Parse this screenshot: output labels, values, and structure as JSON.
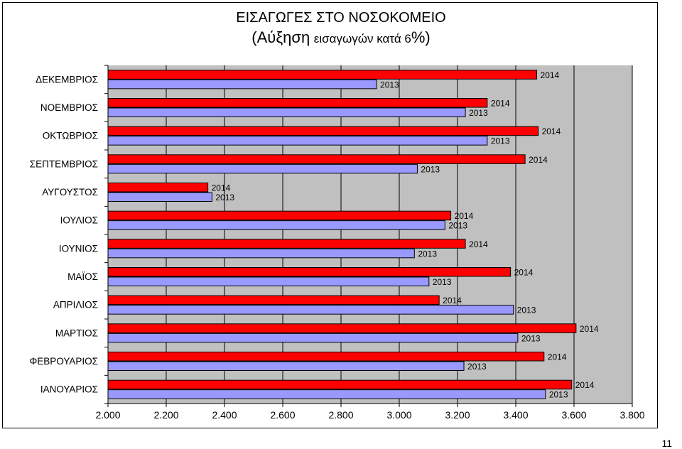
{
  "chart_data": {
    "type": "bar",
    "orientation": "horizontal",
    "title": "ΕΙΣΑΓΩΓΕΣ ΣΤΟ ΝΟΣΟΚΟΜΕΙΟ",
    "subtitle_parts": [
      "(",
      "Αύξηση",
      "εισαγωγών κατά 6",
      "%",
      ")"
    ],
    "categories": [
      "ΔΕΚΕΜΒΡΙΟΣ",
      "ΝΟΕΜΒΡΙΟΣ",
      "ΟΚΤΩΒΡΙΟΣ",
      "ΣΕΠΤΕΜΒΡΙΟΣ",
      "ΑΥΓΟΥΣΤΟΣ",
      "ΙΟΥΛΙΟΣ",
      "ΙΟΥΝΙΟΣ",
      "ΜΑΪΟΣ",
      "ΑΠΡΙΛΙΟΣ",
      "ΜΑΡΤΙΟΣ",
      "ΦΕΒΡΟΥΑΡΙΟΣ",
      "ΙΑΝΟΥΑΡΙΟΣ"
    ],
    "series": [
      {
        "name": "2014",
        "color": "#ff0000",
        "values": [
          3472,
          3302,
          3477,
          3432,
          2343,
          3177,
          3227,
          3382,
          3137,
          3607,
          3497,
          3592
        ]
      },
      {
        "name": "2013",
        "color": "#9999ff",
        "values": [
          2922,
          3227,
          3302,
          3062,
          2357,
          3157,
          3052,
          3102,
          3392,
          3407,
          3222,
          3502
        ]
      }
    ],
    "xlim": [
      2000,
      3800
    ],
    "xticks": [
      2000,
      2200,
      2400,
      2600,
      2800,
      3000,
      3200,
      3400,
      3600,
      3800
    ],
    "xtick_labels": [
      "2.000",
      "2.200",
      "2.400",
      "2.600",
      "2.800",
      "3.000",
      "3.200",
      "3.400",
      "3.600",
      "3.800"
    ],
    "grid": "vertical",
    "plot_background": "#c0c0c0"
  },
  "page_number": "11"
}
